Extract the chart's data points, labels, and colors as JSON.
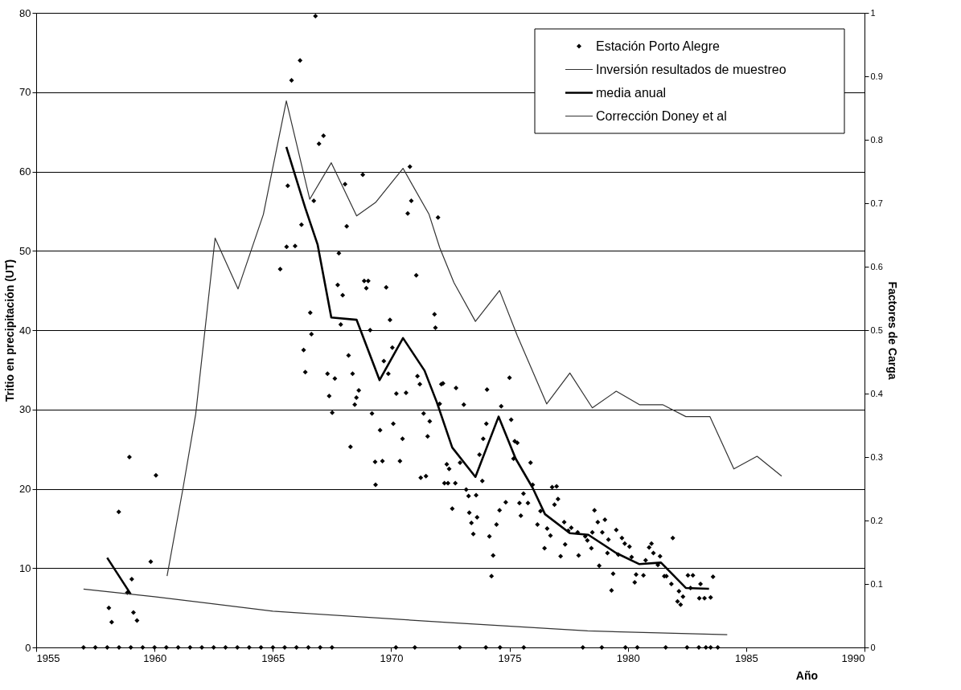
{
  "chart_data": {
    "type": "scatter",
    "xlabel": "Año",
    "ylabel": "Tritio en precipitación (UT)",
    "y2label": "Factores de Carga",
    "xlim": [
      1955,
      1990
    ],
    "xticks": [
      1955,
      1960,
      1965,
      1970,
      1975,
      1980,
      1985,
      1990
    ],
    "ylim": [
      0,
      80
    ],
    "yticks": [
      0,
      10,
      20,
      30,
      40,
      50,
      60,
      70,
      80
    ],
    "y2lim": [
      0,
      1
    ],
    "y2ticks": [
      0,
      0.1,
      0.2,
      0.3,
      0.4,
      0.5,
      0.6,
      0.7,
      0.8,
      0.9,
      1
    ],
    "grid": "y",
    "legend": "top right",
    "series": [
      {
        "name": "Estación Porto Alegre",
        "marker": "diamond",
        "color": "#000000",
        "x": [
          1958.07,
          1958.19,
          1958.49,
          1958.94,
          1959.04,
          1959.11,
          1959.26,
          1958.85,
          1959.84,
          1960.06,
          1966.8,
          1966.15,
          1965.79,
          1966.95,
          1967.14,
          1965.63,
          1965.58,
          1965.94,
          1965.31,
          1966.21,
          1966.73,
          1968.05,
          1968.8,
          1970.79,
          1970.85,
          1970.7,
          1971.98,
          1968.12,
          1967.79,
          1967.74,
          1967.95,
          1968.86,
          1969.03,
          1968.95,
          1969.79,
          1971.06,
          1966.58,
          1967.87,
          1969.95,
          1969.11,
          1971.83,
          1971.87,
          1966.63,
          1966.3,
          1966.37,
          1967.31,
          1967.62,
          1967.38,
          1967.51,
          1968.2,
          1968.37,
          1968.63,
          1968.53,
          1968.46,
          1968.28,
          1969.19,
          1969.53,
          1969.32,
          1969.63,
          1969.34,
          1969.69,
          1969.88,
          1970.05,
          1970.22,
          1970.63,
          1970.09,
          1970.48,
          1970.37,
          1971.11,
          1971.21,
          1971.37,
          1971.63,
          1971.54,
          1971.25,
          1971.47,
          1972.12,
          1972.25,
          1972.05,
          1972.19,
          1972.74,
          1973.07,
          1972.35,
          1972.45,
          1972.4,
          1972.71,
          1972.58,
          1972.91,
          1973.17,
          1973.27,
          1973.59,
          1973.3,
          1973.39,
          1973.63,
          1973.47,
          1973.73,
          1973.89,
          1973.85,
          1974.02,
          1974.05,
          1974.15,
          1974.31,
          1974.24,
          1974.45,
          1974.58,
          1974.84,
          1974.65,
          1975.0,
          1975.07,
          1975.17,
          1975.22,
          1975.33,
          1975.42,
          1975.48,
          1975.59,
          1975.78,
          1975.89,
          1975.98,
          1976.18,
          1976.31,
          1976.48,
          1976.59,
          1976.73,
          1976.8,
          1976.9,
          1976.99,
          1977.05,
          1977.16,
          1977.31,
          1977.35,
          1977.48,
          1977.61,
          1977.88,
          1977.92,
          1978.2,
          1978.29,
          1978.46,
          1978.5,
          1978.59,
          1978.73,
          1978.79,
          1978.92,
          1979.03,
          1979.18,
          1979.14,
          1979.31,
          1979.38,
          1979.51,
          1979.6,
          1979.75,
          1979.87,
          1980.07,
          1980.16,
          1980.29,
          1980.35,
          1980.66,
          1980.75,
          1980.9,
          1981.0,
          1981.08,
          1981.27,
          1981.36,
          1981.54,
          1981.63,
          1981.9,
          1981.84,
          1982.1,
          1982.23,
          1982.16,
          1982.33,
          1982.54,
          1982.75,
          1982.65,
          1983.07,
          1983.02,
          1983.24,
          1983.5,
          1983.6,
          1957.0,
          1957.5,
          1958.0,
          1958.5,
          1959.0,
          1959.5,
          1960.0,
          1960.5,
          1961.0,
          1961.5,
          1962.0,
          1962.5,
          1963.0,
          1963.5,
          1964.0,
          1964.5,
          1965.0,
          1965.5,
          1966.0,
          1966.5,
          1967.0,
          1967.5,
          1970.2,
          1971.0,
          1972.9,
          1974.0,
          1974.6,
          1975.6,
          1978.1,
          1978.9,
          1979.9,
          1980.4,
          1981.6,
          1982.5,
          1983.0,
          1983.3,
          1983.5,
          1983.8
        ],
        "values": [
          5.0,
          3.2,
          17.1,
          24.0,
          8.6,
          4.4,
          3.4,
          6.9,
          10.8,
          21.7,
          79.6,
          74.0,
          71.5,
          63.5,
          64.5,
          58.2,
          50.5,
          50.6,
          47.7,
          53.3,
          56.3,
          58.4,
          59.6,
          60.6,
          56.3,
          54.7,
          54.2,
          53.1,
          49.7,
          45.7,
          44.4,
          46.2,
          46.2,
          45.3,
          45.4,
          46.9,
          42.2,
          40.7,
          41.3,
          40.0,
          42.0,
          40.3,
          39.5,
          37.5,
          34.7,
          34.5,
          33.9,
          31.7,
          29.6,
          36.8,
          34.5,
          32.4,
          31.5,
          30.6,
          25.3,
          29.5,
          27.4,
          23.4,
          23.5,
          20.5,
          36.1,
          34.5,
          37.8,
          32.0,
          32.1,
          28.2,
          26.3,
          23.5,
          34.2,
          33.2,
          29.5,
          28.5,
          26.6,
          21.4,
          21.6,
          33.2,
          20.7,
          30.7,
          33.3,
          32.7,
          30.6,
          23.1,
          22.5,
          20.7,
          20.7,
          17.5,
          23.3,
          19.9,
          19.1,
          19.2,
          17.0,
          15.7,
          16.4,
          14.3,
          24.3,
          26.3,
          21.0,
          28.2,
          32.5,
          14.0,
          11.6,
          9.0,
          15.5,
          17.3,
          18.3,
          30.4,
          34.0,
          28.7,
          23.8,
          26.0,
          25.8,
          18.2,
          16.6,
          19.4,
          18.2,
          23.3,
          20.5,
          15.5,
          17.2,
          12.5,
          15.0,
          14.1,
          20.2,
          18.0,
          20.3,
          18.7,
          11.5,
          15.8,
          13.0,
          14.7,
          15.1,
          14.5,
          11.6,
          14.0,
          13.5,
          12.5,
          14.5,
          17.3,
          15.8,
          10.3,
          14.5,
          16.1,
          13.6,
          11.9,
          7.2,
          9.3,
          14.8,
          11.7,
          13.8,
          13.1,
          12.7,
          11.4,
          8.2,
          9.2,
          9.1,
          11.0,
          12.6,
          13.1,
          11.9,
          10.4,
          11.5,
          9.0,
          9.0,
          13.8,
          8.0,
          5.8,
          5.4,
          7.1,
          6.4,
          9.1,
          9.1,
          7.5,
          8.0,
          6.2,
          6.2,
          6.3,
          8.9,
          0,
          0,
          0,
          0,
          0,
          0,
          0,
          0,
          0,
          0,
          0,
          0,
          0,
          0,
          0,
          0,
          0,
          0,
          0,
          0,
          0,
          0,
          0,
          0,
          0,
          0,
          0,
          0,
          0,
          0,
          0,
          0,
          0,
          0,
          0,
          0,
          0,
          0
        ]
      },
      {
        "name": "Inversión resultados de muestreo",
        "type": "line",
        "color": "#333333",
        "x": [
          1960.53,
          1961.2,
          1961.74,
          1962.56,
          1963.53,
          1964.6,
          1965.57,
          1966.56,
          1967.47,
          1968.54,
          1969.34,
          1970.5,
          1971.6,
          1972.05,
          1972.65,
          1973.56,
          1974.58,
          1975.33,
          1976.57,
          1977.55,
          1978.5,
          1979.51,
          1980.49,
          1981.47,
          1982.45,
          1983.47,
          1984.48,
          1985.46,
          1986.5
        ],
        "values": [
          9.0,
          20.0,
          29.4,
          51.6,
          45.2,
          54.6,
          68.9,
          56.5,
          61.1,
          54.4,
          56.1,
          60.4,
          54.6,
          50.4,
          46.0,
          41.1,
          45.0,
          39.3,
          30.7,
          34.6,
          30.2,
          32.3,
          30.6,
          30.6,
          29.1,
          29.1,
          22.5,
          24.1,
          21.6
        ]
      },
      {
        "name": "media anual",
        "type": "line",
        "color": "#000000",
        "x": [
          1958.0,
          1959.0,
          null,
          1965.57,
          1966.37,
          1966.89,
          1967.47,
          1968.54,
          1969.51,
          1970.5,
          1971.41,
          1971.93,
          1972.58,
          1973.56,
          1974.54,
          1975.26,
          1975.98,
          1976.5,
          1977.55,
          1978.33,
          1979.51,
          1980.49,
          1981.4,
          1982.45,
          1983.43
        ],
        "values": [
          11.3,
          6.7,
          null,
          63.1,
          55.4,
          50.8,
          41.6,
          41.3,
          33.7,
          39.0,
          34.9,
          30.9,
          25.2,
          21.5,
          29.1,
          23.8,
          20.1,
          16.8,
          14.4,
          14.2,
          11.9,
          10.5,
          10.7,
          7.5,
          7.4
        ]
      },
      {
        "name": "Corrección Doney et al",
        "type": "line",
        "axis": "y2",
        "color": "#333333",
        "x": [
          1957.0,
          1960.0,
          1965.0,
          1972.5,
          1978.3,
          1984.2
        ],
        "values": [
          0.092,
          0.08,
          0.057,
          0.039,
          0.026,
          0.02
        ]
      }
    ]
  }
}
